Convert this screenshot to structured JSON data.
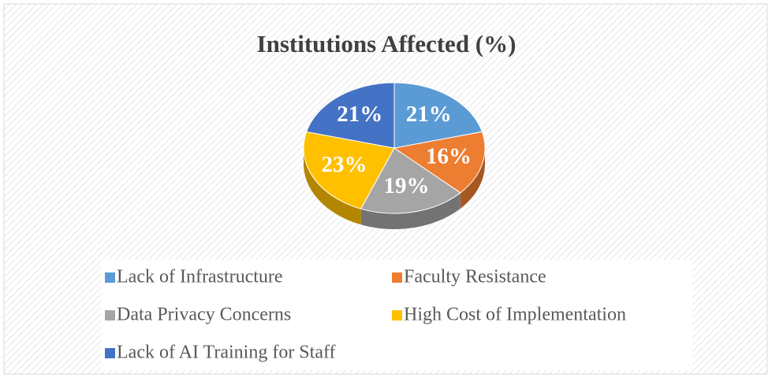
{
  "chart_data": {
    "type": "pie",
    "title": "Institutions Affected (%)",
    "categories": [
      "Lack of Infrastructure",
      "Faculty Resistance",
      "Data Privacy Concerns",
      "High Cost of Implementation",
      "Lack of AI Training for Staff"
    ],
    "values": [
      21,
      16,
      19,
      23,
      21
    ],
    "value_labels": [
      "21%",
      "16%",
      "19%",
      "23%",
      "21%"
    ],
    "colors": [
      "#5b9bd5",
      "#ed7d31",
      "#a5a5a5",
      "#ffc000",
      "#4472c4"
    ],
    "legend": "bottom"
  }
}
